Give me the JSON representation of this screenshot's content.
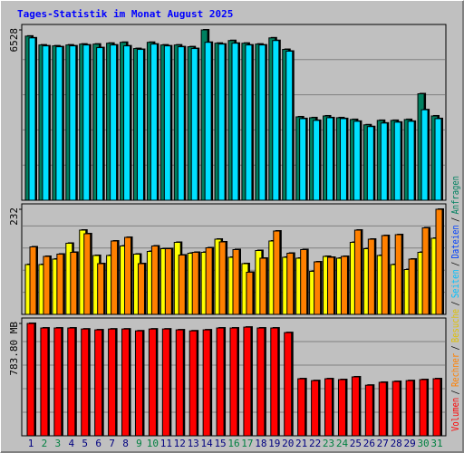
{
  "title": "Tages-Statistik im Monat August 2025",
  "categories": [
    "1",
    "2",
    "3",
    "4",
    "5",
    "6",
    "7",
    "8",
    "9",
    "10",
    "11",
    "12",
    "13",
    "14",
    "15",
    "16",
    "17",
    "18",
    "19",
    "20",
    "21",
    "22",
    "23",
    "24",
    "25",
    "26",
    "27",
    "28",
    "29",
    "30",
    "31"
  ],
  "category_colors": [
    "#000080",
    "#008040",
    "#008040",
    "#000080",
    "#000080",
    "#000080",
    "#000080",
    "#000080",
    "#008040",
    "#008040",
    "#000080",
    "#000080",
    "#000080",
    "#000080",
    "#000080",
    "#008040",
    "#008040",
    "#000080",
    "#000080",
    "#000080",
    "#000080",
    "#000080",
    "#008040",
    "#008040",
    "#000080",
    "#000080",
    "#000080",
    "#000080",
    "#000080",
    "#008040",
    "#008040"
  ],
  "legend_separator": "/",
  "legend": [
    {
      "name": "Volumen",
      "color": "#ff0000"
    },
    {
      "name": "Rechner",
      "color": "#ff8000"
    },
    {
      "name": "Besuche",
      "color": "#e0c000"
    },
    {
      "name": "Seiten",
      "color": "#00c0ff"
    },
    {
      "name": "Dateien",
      "color": "#0040ff"
    },
    {
      "name": "Anfragen",
      "color": "#008060"
    }
  ],
  "chart_data": [
    {
      "type": "bar",
      "ylim": [
        0,
        6528
      ],
      "yticks": [
        6528
      ],
      "series": [
        {
          "color": "#008060",
          "values": [
            6290,
            5950,
            5916,
            5950,
            5984,
            5984,
            6018,
            6052,
            5814,
            6052,
            5950,
            5950,
            5882,
            6528,
            6018,
            6120,
            6018,
            5984,
            6222,
            5780,
            3196,
            3162,
            3230,
            3162,
            3094,
            2890,
            3060,
            3060,
            3094,
            4080,
            3230
          ]
        },
        {
          "color": "#00e0ff",
          "values": [
            6222,
            5916,
            5882,
            5916,
            5950,
            5848,
            5950,
            5916,
            5780,
            5984,
            5916,
            5882,
            5814,
            6052,
            5984,
            6018,
            5950,
            5950,
            6120,
            5712,
            3128,
            3060,
            3162,
            3128,
            3026,
            2822,
            2958,
            2992,
            3026,
            3468,
            3128
          ]
        }
      ]
    },
    {
      "type": "bar",
      "ylim": [
        0,
        232
      ],
      "yticks": [
        232
      ],
      "series": [
        {
          "color": "#ffff00",
          "values": [
            110,
            110,
            122,
            157,
            186,
            130,
            130,
            151,
            133,
            139,
            145,
            159,
            135,
            137,
            166,
            126,
            112,
            141,
            162,
            126,
            124,
            95,
            128,
            124,
            159,
            145,
            130,
            110,
            99,
            137,
            168
          ]
        },
        {
          "color": "#ff8000",
          "values": [
            149,
            128,
            133,
            137,
            178,
            112,
            162,
            170,
            112,
            151,
            145,
            131,
            137,
            147,
            160,
            143,
            93,
            124,
            184,
            135,
            143,
            116,
            126,
            128,
            186,
            166,
            174,
            176,
            122,
            191,
            232
          ]
        }
      ]
    },
    {
      "type": "bar",
      "ylim": [
        0,
        783.8
      ],
      "yticks": [
        {
          "value": 783.8,
          "label": "783.80 MB"
        }
      ],
      "series": [
        {
          "color": "#ff0000",
          "values": [
            783.8,
            752,
            752,
            752,
            745,
            739,
            745,
            745,
            732,
            745,
            745,
            739,
            732,
            739,
            752,
            752,
            758,
            752,
            752,
            720,
            398,
            385,
            398,
            392,
            411,
            353,
            373,
            379,
            385,
            392,
            398
          ]
        }
      ]
    }
  ]
}
